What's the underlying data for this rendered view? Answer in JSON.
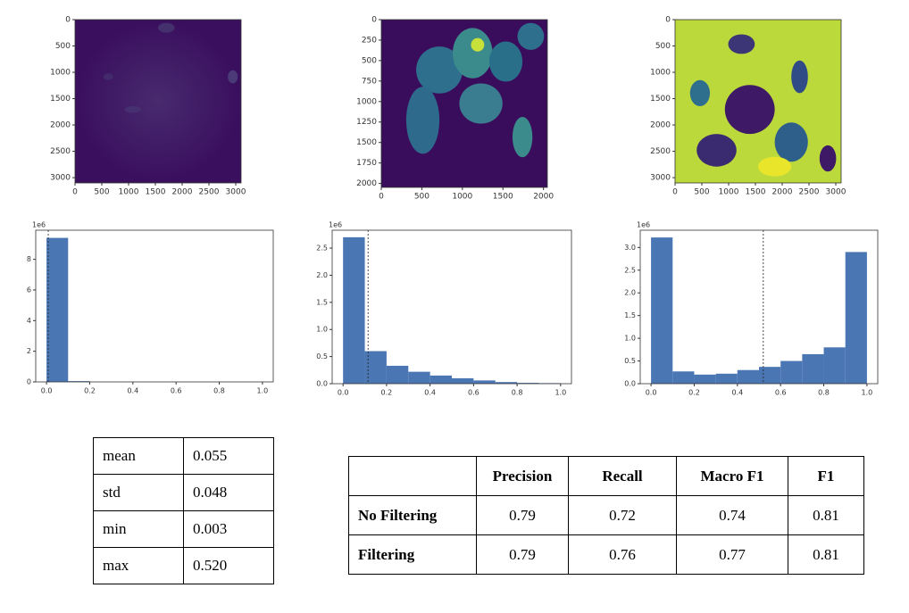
{
  "images": [
    {
      "xlim": [
        0,
        3100
      ],
      "ylim": [
        0,
        3100
      ],
      "xticks": [
        0,
        500,
        1000,
        1500,
        2000,
        2500,
        3000
      ],
      "yticks": [
        0,
        500,
        1000,
        1500,
        2000,
        2500,
        3000
      ]
    },
    {
      "xlim": [
        0,
        2048
      ],
      "ylim": [
        0,
        2048
      ],
      "xticks": [
        0,
        500,
        1000,
        1500,
        2000
      ],
      "yticks": [
        0,
        250,
        500,
        750,
        1000,
        1250,
        1500,
        1750,
        2000
      ]
    },
    {
      "xlim": [
        0,
        3100
      ],
      "ylim": [
        0,
        3100
      ],
      "xticks": [
        0,
        500,
        1000,
        1500,
        2000,
        2500,
        3000
      ],
      "yticks": [
        0,
        500,
        1000,
        1500,
        2000,
        2500,
        3000
      ]
    }
  ],
  "chart_data": [
    {
      "type": "histogram",
      "color": "#4a76b4",
      "bins": [
        0,
        0.1,
        0.2,
        0.3,
        0.4,
        0.5,
        0.6,
        0.7,
        0.8,
        0.9,
        1.0
      ],
      "counts": [
        9.4,
        0.05,
        0,
        0,
        0,
        0,
        0,
        0,
        0,
        0
      ],
      "threshold": 0.008,
      "y_offset_label": "1e6",
      "xlim": [
        -0.05,
        1.05
      ],
      "ylim": [
        0,
        9.9
      ],
      "xticks": [
        {
          "value": 0,
          "label": "0.0"
        },
        0.2,
        0.4,
        0.6,
        0.8,
        {
          "value": 1,
          "label": "1.0"
        }
      ],
      "yticks": [
        0,
        2,
        4,
        6,
        8
      ]
    },
    {
      "type": "histogram",
      "color": "#4a76b4",
      "bins": [
        0,
        0.1,
        0.2,
        0.3,
        0.4,
        0.5,
        0.6,
        0.7,
        0.8,
        0.9,
        1.0
      ],
      "counts": [
        2.7,
        0.6,
        0.33,
        0.22,
        0.15,
        0.1,
        0.06,
        0.03,
        0.015,
        0.01
      ],
      "threshold": 0.115,
      "y_offset_label": "1e6",
      "xlim": [
        -0.05,
        1.05
      ],
      "ylim": [
        0,
        2.83
      ],
      "xticks": [
        {
          "value": 0,
          "label": "0.0"
        },
        0.2,
        0.4,
        0.6,
        0.8,
        {
          "value": 1,
          "label": "1.0"
        }
      ],
      "yticks": [
        {
          "value": 0,
          "label": "0.0"
        },
        0.5,
        {
          "value": 1,
          "label": "1.0"
        },
        1.5,
        {
          "value": 2,
          "label": "2.0"
        },
        2.5
      ]
    },
    {
      "type": "histogram",
      "color": "#4a76b4",
      "bins": [
        0,
        0.1,
        0.2,
        0.3,
        0.4,
        0.5,
        0.6,
        0.7,
        0.8,
        0.9,
        1.0
      ],
      "counts": [
        3.22,
        0.27,
        0.2,
        0.22,
        0.3,
        0.37,
        0.5,
        0.65,
        0.8,
        2.9
      ],
      "threshold": 0.52,
      "y_offset_label": "1e6",
      "xlim": [
        -0.05,
        1.05
      ],
      "ylim": [
        0,
        3.38
      ],
      "xticks": [
        {
          "value": 0,
          "label": "0.0"
        },
        0.2,
        0.4,
        0.6,
        0.8,
        {
          "value": 1,
          "label": "1.0"
        }
      ],
      "yticks": [
        {
          "value": 0,
          "label": "0.0"
        },
        0.5,
        {
          "value": 1,
          "label": "1.0"
        },
        1.5,
        {
          "value": 2,
          "label": "2.0"
        },
        2.5,
        {
          "value": 3,
          "label": "3.0"
        }
      ]
    }
  ],
  "stats_table": {
    "rows": [
      [
        "mean",
        "0.055"
      ],
      [
        "std",
        "0.048"
      ],
      [
        "min",
        "0.003"
      ],
      [
        "max",
        "0.520"
      ]
    ]
  },
  "metrics_table": {
    "header": [
      "Precision",
      "Recall",
      "Macro F1",
      "F1"
    ],
    "rows": [
      [
        "No Filtering",
        "0.79",
        "0.72",
        "0.74",
        "0.81"
      ],
      [
        "Filtering",
        "0.79",
        "0.76",
        "0.77",
        "0.81"
      ]
    ]
  }
}
